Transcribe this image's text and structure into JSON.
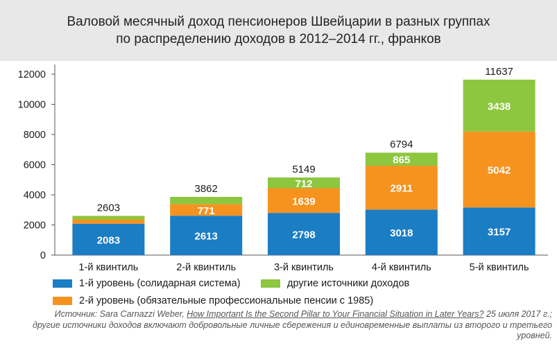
{
  "title": {
    "line1": "Валовой месячный доход пенсионеров Швейцарии в разных группах",
    "line2": "по распределению доходов в 2012–2014 гг., франков"
  },
  "colors": {
    "level1": "#1b7dc4",
    "level2": "#f6931f",
    "other": "#8dc63f",
    "title_band": "#e8e8e8"
  },
  "legend": [
    {
      "key": "level1",
      "label": "1-й уровень (солидарная система)"
    },
    {
      "key": "other",
      "label": "другие источники доходов"
    },
    {
      "key": "level2",
      "label": "2-й уровень (обязательные профессиональные пенсии с 1985)"
    }
  ],
  "source": {
    "prefix": "Источник: Sara Carnazzi Weber, ",
    "link": "How Important Is the Second Pillar to Your Financial Situation in Later Years?",
    "suffix": " 25 июля 2017 г.;",
    "line2": "другие источники доходов включают добровольные личные сбережения и единовременные выплаты из второго и третьего",
    "line3": "уровней."
  },
  "chart_data": {
    "type": "bar",
    "stacked": true,
    "categories": [
      "1-й квинтиль",
      "2-й квинтиль",
      "3-й квинтиль",
      "4-й квинтиль",
      "5-й квинтиль"
    ],
    "series": [
      {
        "key": "level1",
        "name": "1-й уровень (солидарная система)",
        "values": [
          2083,
          2613,
          2798,
          3018,
          3157
        ]
      },
      {
        "key": "level2",
        "name": "2-й уровень (обязательные профессиональные пенсии с 1985)",
        "values": [
          290,
          771,
          1639,
          2911,
          5042
        ]
      },
      {
        "key": "other",
        "name": "другие источники доходов",
        "values": [
          230,
          478,
          712,
          865,
          3438
        ]
      }
    ],
    "segment_labels": {
      "level1": [
        "2083",
        "2613",
        "2798",
        "3018",
        "3157"
      ],
      "level2": [
        "",
        "771",
        "1639",
        "2911",
        "5042"
      ],
      "other": [
        "",
        "",
        "712",
        "865",
        "3438"
      ]
    },
    "totals": [
      2603,
      3862,
      5149,
      6794,
      11637
    ],
    "ylim": [
      0,
      12000
    ],
    "yticks": [
      0,
      2000,
      4000,
      6000,
      8000,
      10000,
      12000
    ],
    "grid": false,
    "legend_position": "bottom"
  }
}
